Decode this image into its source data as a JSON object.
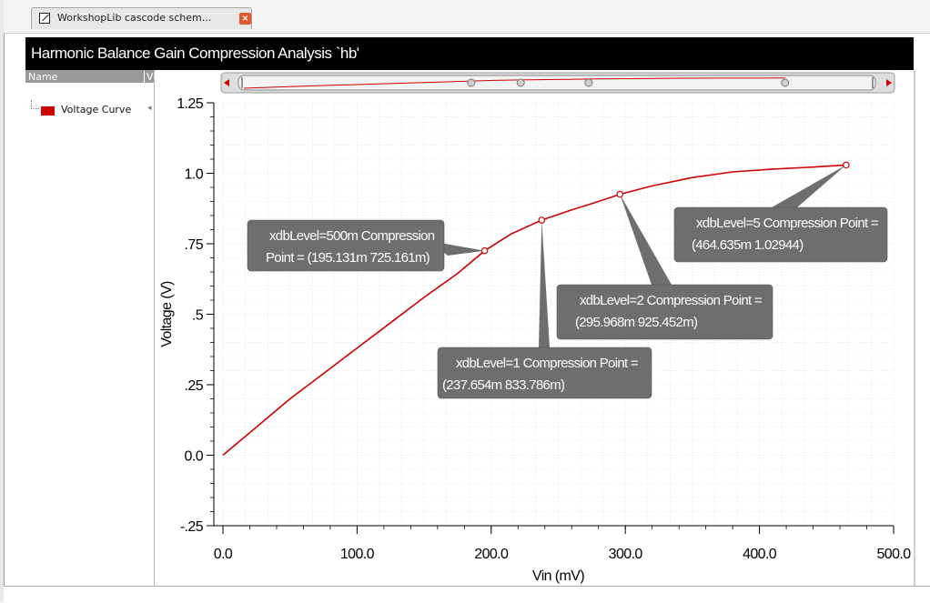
{
  "tab": {
    "label": "WorkshopLib cascode schem...",
    "close_icon": "close-icon"
  },
  "title": "Harmonic Balance Gain Compression Analysis `hb'",
  "sidebar": {
    "column_name": "Name",
    "column_value": "V(",
    "items": [
      {
        "label": "Voltage Curve",
        "color": "#d00000"
      }
    ]
  },
  "colors": {
    "curve": "#d00000",
    "annotation_bg": "#6e6e6e",
    "titlebar": "#000000",
    "grid": "#d9d9d9"
  },
  "chart_data": {
    "type": "line",
    "title": "Harmonic Balance Gain Compression Analysis `hb'",
    "xlabel": "Vin (mV)",
    "ylabel": "Voltage (V)",
    "xlim": [
      0,
      500
    ],
    "ylim": [
      -0.25,
      1.25
    ],
    "x_ticks": [
      "0.0",
      "100.0",
      "200.0",
      "300.0",
      "400.0",
      "500.0"
    ],
    "y_ticks": [
      "-.25",
      "0.0",
      ".25",
      ".5",
      ".75",
      "1.0",
      "1.25"
    ],
    "grid": true,
    "series": [
      {
        "name": "Voltage Curve",
        "x": [
          0,
          25,
          50,
          75,
          100,
          125,
          150,
          175,
          195.131,
          215,
          237.654,
          260,
          280,
          295.968,
          320,
          350,
          380,
          410,
          440,
          464.635
        ],
        "y": [
          0,
          0.1,
          0.2,
          0.29,
          0.38,
          0.47,
          0.56,
          0.645,
          0.725161,
          0.785,
          0.833786,
          0.87,
          0.9,
          0.925452,
          0.955,
          0.985,
          1.005,
          1.015,
          1.022,
          1.02944
        ]
      }
    ],
    "annotations": [
      {
        "line1": "xdbLevel=500m Compression",
        "line2": "Point = (195.131m 725.161m)",
        "x": 195.131,
        "y": 0.725161
      },
      {
        "line1": "xdbLevel=1 Compression Point =",
        "line2": "(237.654m 833.786m)",
        "x": 237.654,
        "y": 0.833786
      },
      {
        "line1": "xdbLevel=2 Compression Point =",
        "line2": "(295.968m 925.452m)",
        "x": 295.968,
        "y": 0.925452
      },
      {
        "line1": "xdbLevel=5 Compression Point =",
        "line2": "(464.635m 1.02944)",
        "x": 464.635,
        "y": 1.02944
      }
    ]
  }
}
